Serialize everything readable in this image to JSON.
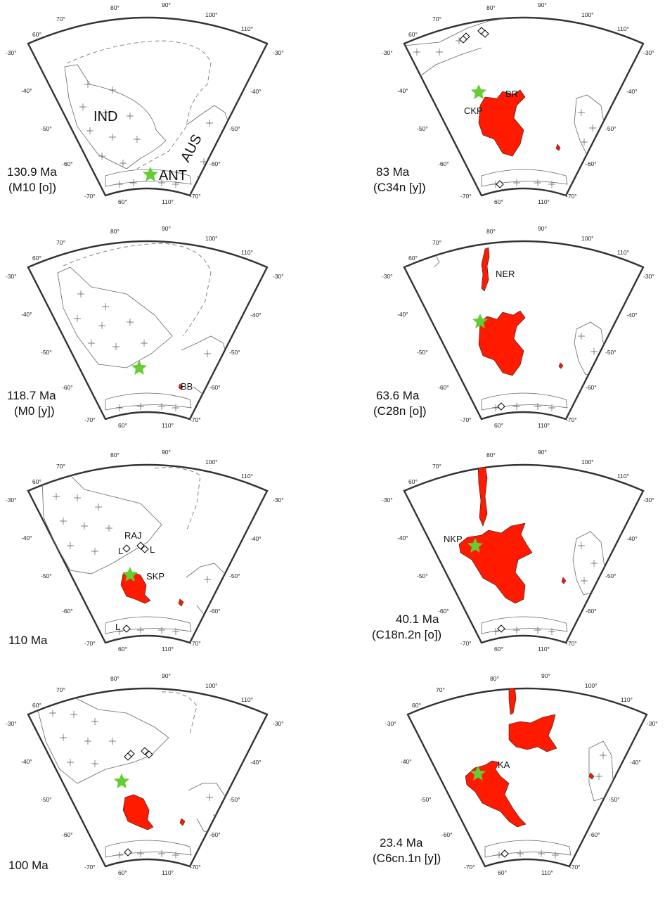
{
  "colors": {
    "plume_star": "#66cc33",
    "volcanic": "#ff1a00",
    "frame": "#333333",
    "coast": "#666666"
  },
  "ticks": {
    "top": [
      "60°",
      "70°",
      "80°",
      "90°",
      "100°",
      "110°"
    ],
    "left": [
      "-30°",
      "-40°",
      "-50°",
      "-60°",
      "-70°"
    ],
    "right": [
      "-30°",
      "-40°",
      "-50°",
      "-60°",
      "-70°"
    ],
    "bottom": [
      "60°",
      "110°"
    ]
  },
  "panels": [
    {
      "age": "130.9 Ma",
      "chron": "(M10 [o])",
      "labels": {
        "ind": "IND",
        "ant": "ANT",
        "aus": "AUS"
      }
    },
    {
      "age": "83 Ma",
      "chron": "(C34n [y])",
      "labels": {
        "br": "BR",
        "ckp": "CKP"
      }
    },
    {
      "age": "118.7 Ma",
      "chron": "(M0 [y])",
      "labels": {
        "bb": "BB"
      }
    },
    {
      "age": "63.6 Ma",
      "chron": "(C28n [o])",
      "labels": {
        "ner": "NER"
      }
    },
    {
      "age": "110 Ma",
      "chron": "",
      "labels": {
        "raj": "RAJ",
        "l1": "L",
        "l2": "L",
        "l3": "L",
        "skp": "SKP"
      }
    },
    {
      "age": "40.1 Ma",
      "chron": "(C18n.2n [o])",
      "labels": {
        "nkp": "NKP"
      }
    },
    {
      "age": "100 Ma",
      "chron": "",
      "labels": {}
    },
    {
      "age": "23.4 Ma",
      "chron": "(C6cn.1n [y])",
      "labels": {
        "ka": "KA"
      }
    }
  ]
}
